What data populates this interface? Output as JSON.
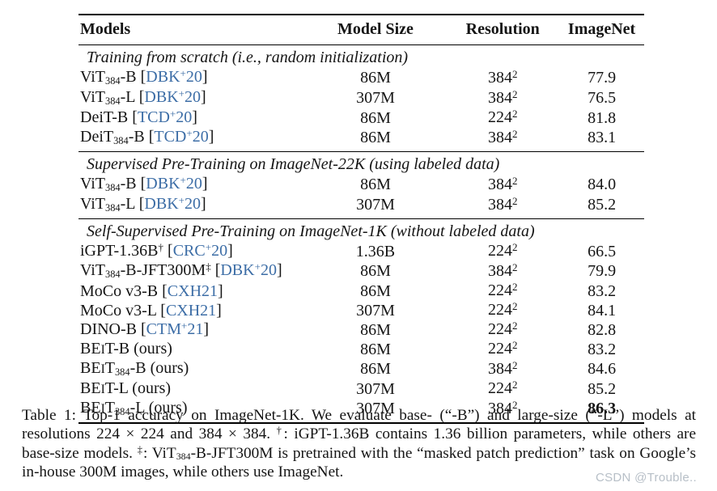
{
  "page": {
    "watermark": "CSDN @Trouble.."
  },
  "colors": {
    "citation": "#3c6da6",
    "watermark": "#b7bfc7",
    "text": "#151515"
  },
  "table": {
    "headers": [
      "Models",
      "Model Size",
      "Resolution",
      "ImageNet"
    ],
    "sections": [
      {
        "title": "Training from scratch (i.e., random initialization)",
        "rows": [
          {
            "label": [
              {
                "t": "ViT"
              },
              {
                "sub": "384"
              },
              {
                "t": "-B "
              },
              {
                "cite": "DBK+20"
              }
            ],
            "size": "86M",
            "res": "384^2",
            "score": "77.9",
            "bold": false
          },
          {
            "label": [
              {
                "t": "ViT"
              },
              {
                "sub": "384"
              },
              {
                "t": "-L "
              },
              {
                "cite": "DBK+20"
              }
            ],
            "size": "307M",
            "res": "384^2",
            "score": "76.5",
            "bold": false
          },
          {
            "label": [
              {
                "t": "DeiT-B "
              },
              {
                "cite": "TCD+20"
              }
            ],
            "size": "86M",
            "res": "224^2",
            "score": "81.8",
            "bold": false
          },
          {
            "label": [
              {
                "t": "DeiT"
              },
              {
                "sub": "384"
              },
              {
                "t": "-B "
              },
              {
                "cite": "TCD+20"
              }
            ],
            "size": "86M",
            "res": "384^2",
            "score": "83.1",
            "bold": false
          }
        ]
      },
      {
        "title": "Supervised Pre-Training on ImageNet-22K (using labeled data)",
        "rows": [
          {
            "label": [
              {
                "t": "ViT"
              },
              {
                "sub": "384"
              },
              {
                "t": "-B "
              },
              {
                "cite": "DBK+20"
              }
            ],
            "size": "86M",
            "res": "384^2",
            "score": "84.0",
            "bold": false
          },
          {
            "label": [
              {
                "t": "ViT"
              },
              {
                "sub": "384"
              },
              {
                "t": "-L "
              },
              {
                "cite": "DBK+20"
              }
            ],
            "size": "307M",
            "res": "384^2",
            "score": "85.2",
            "bold": false
          }
        ]
      },
      {
        "title": "Self-Supervised Pre-Training on ImageNet-1K (without labeled data)",
        "rows": [
          {
            "label": [
              {
                "t": "iGPT-1.36B"
              },
              {
                "sup": "†"
              },
              {
                "t": " "
              },
              {
                "cite": "CRC+20"
              }
            ],
            "size": "1.36B",
            "res": "224^2",
            "score": "66.5",
            "bold": false
          },
          {
            "label": [
              {
                "t": "ViT"
              },
              {
                "sub": "384"
              },
              {
                "t": "-B-JFT300M"
              },
              {
                "sup": "‡"
              },
              {
                "t": " "
              },
              {
                "cite": "DBK+20"
              }
            ],
            "size": "86M",
            "res": "384^2",
            "score": "79.9",
            "bold": false
          },
          {
            "label": [
              {
                "t": "MoCo v3-B "
              },
              {
                "cite": "CXH21"
              }
            ],
            "size": "86M",
            "res": "224^2",
            "score": "83.2",
            "bold": false
          },
          {
            "label": [
              {
                "t": "MoCo v3-L "
              },
              {
                "cite": "CXH21"
              }
            ],
            "size": "307M",
            "res": "224^2",
            "score": "84.1",
            "bold": false
          },
          {
            "label": [
              {
                "t": "DINO-B "
              },
              {
                "cite": "CTM+21"
              }
            ],
            "size": "86M",
            "res": "224^2",
            "score": "82.8",
            "bold": false
          },
          {
            "label": [
              {
                "t": "BE"
              },
              {
                "sc": "I"
              },
              {
                "t": "T-B (ours)"
              }
            ],
            "size": "86M",
            "res": "224^2",
            "score": "83.2",
            "bold": false
          },
          {
            "label": [
              {
                "t": "BE"
              },
              {
                "sc": "I"
              },
              {
                "t": "T"
              },
              {
                "sub": "384"
              },
              {
                "t": "-B (ours)"
              }
            ],
            "size": "86M",
            "res": "384^2",
            "score": "84.6",
            "bold": false
          },
          {
            "label": [
              {
                "t": "BE"
              },
              {
                "sc": "I"
              },
              {
                "t": "T-L (ours)"
              }
            ],
            "size": "307M",
            "res": "224^2",
            "score": "85.2",
            "bold": false
          },
          {
            "label": [
              {
                "t": "BE"
              },
              {
                "sc": "I"
              },
              {
                "t": "T"
              },
              {
                "sub": "384"
              },
              {
                "t": "-L (ours)"
              }
            ],
            "size": "307M",
            "res": "384^2",
            "score": "86.3",
            "bold": true
          }
        ]
      }
    ]
  },
  "caption": {
    "segments": [
      {
        "t": "Table 1: Top-1 accuracy on ImageNet-1K. We evaluate base- (“-B”) and large-size (“-L”) models at resolutions 224 × 224 and 384 × 384. "
      },
      {
        "sup": "†"
      },
      {
        "t": ": iGPT-1.36B contains 1.36 billion parameters, while others are base-size models. "
      },
      {
        "sup": "‡"
      },
      {
        "t": ": ViT"
      },
      {
        "sub": "384"
      },
      {
        "t": "-B-JFT300M is pretrained with the “masked patch prediction” task on Google’s in-house 300M images, while others use ImageNet."
      }
    ]
  }
}
